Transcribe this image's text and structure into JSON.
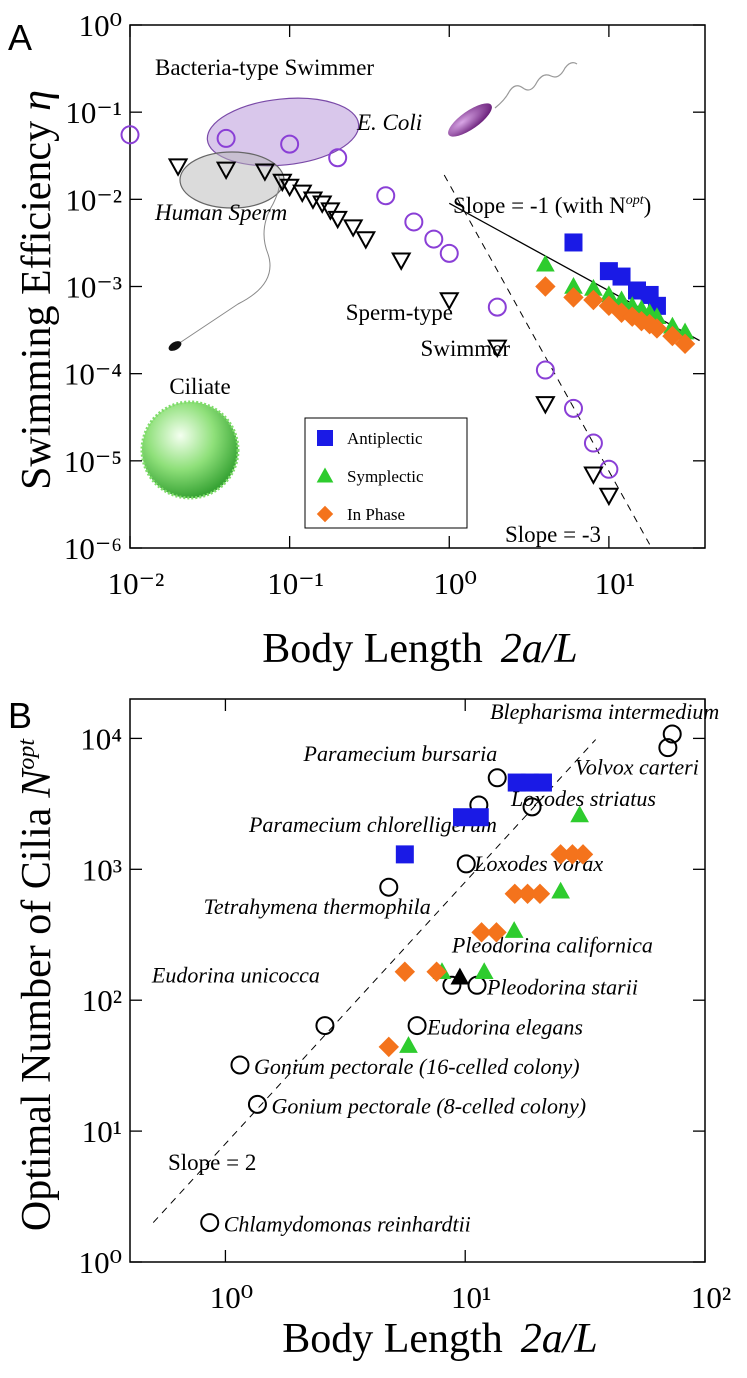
{
  "chart_data": [
    {
      "panel": "A",
      "type": "scatter",
      "log_x": true,
      "log_y": true,
      "xlabel": {
        "text": "Body Length",
        "math": "2a/L"
      },
      "ylabel": {
        "text": "Swimming Efficiency",
        "symbol": "η"
      },
      "xlim": [
        0.01,
        40
      ],
      "ylim": [
        1e-06,
        1
      ],
      "xticks": [
        {
          "value": 0.01,
          "label": "10⁻²"
        },
        {
          "value": 0.1,
          "label": "10⁻¹"
        },
        {
          "value": 1,
          "label": "10⁰"
        },
        {
          "value": 10,
          "label": "10¹"
        }
      ],
      "yticks": [
        {
          "value": 1e-06,
          "label": "10⁻⁶"
        },
        {
          "value": 1e-05,
          "label": "10⁻⁵"
        },
        {
          "value": 0.0001,
          "label": "10⁻⁴"
        },
        {
          "value": 0.001,
          "label": "10⁻³"
        },
        {
          "value": 0.01,
          "label": "10⁻²"
        },
        {
          "value": 0.1,
          "label": "10⁻¹"
        },
        {
          "value": 1,
          "label": "10⁰"
        }
      ],
      "series": [
        {
          "marker": "circle",
          "filled": false,
          "color": "#8a3fd6",
          "x": [
            0.01,
            0.04,
            0.1,
            0.2,
            0.4,
            0.6,
            0.8,
            1,
            2,
            4,
            6,
            8,
            10
          ],
          "values": [
            0.055,
            0.05,
            0.043,
            0.03,
            0.011,
            0.0055,
            0.0035,
            0.0024,
            0.00058,
            0.00011,
            4e-05,
            1.6e-05,
            8e-06
          ]
        },
        {
          "marker": "triangle-down",
          "filled": false,
          "color": "#000000",
          "x": [
            0.02,
            0.04,
            0.07,
            0.09,
            0.1,
            0.12,
            0.14,
            0.16,
            0.18,
            0.2,
            0.25,
            0.3,
            0.5,
            1,
            2,
            4,
            8,
            10
          ],
          "values": [
            0.024,
            0.022,
            0.021,
            0.016,
            0.014,
            0.012,
            0.01,
            0.009,
            0.0075,
            0.006,
            0.0048,
            0.0035,
            0.002,
            0.0007,
            0.0002,
            4.5e-05,
            7e-06,
            4e-06
          ]
        },
        {
          "name": "Antiplectic",
          "marker": "square",
          "filled": true,
          "color": "#1a1ae6",
          "x": [
            6,
            10,
            12,
            15,
            18,
            20
          ],
          "values": [
            0.0032,
            0.0015,
            0.0013,
            0.0009,
            0.0008,
            0.0006
          ]
        },
        {
          "name": "Symplectic",
          "marker": "triangle",
          "filled": true,
          "color": "#2ecc2e",
          "x": [
            4,
            6,
            8,
            10,
            12,
            14,
            16,
            18,
            20,
            25,
            30
          ],
          "values": [
            0.0018,
            0.001,
            0.00095,
            0.0008,
            0.0007,
            0.0006,
            0.00055,
            0.0005,
            0.00045,
            0.00035,
            0.0003
          ]
        },
        {
          "name": "In Phase",
          "marker": "diamond",
          "filled": true,
          "color": "#f4731c",
          "x": [
            4,
            6,
            8,
            10,
            12,
            14,
            16,
            18,
            20,
            25,
            30
          ],
          "values": [
            0.001,
            0.00075,
            0.0007,
            0.0006,
            0.0005,
            0.00045,
            0.0004,
            0.00037,
            0.00033,
            0.00027,
            0.00022
          ]
        }
      ],
      "lines": [
        {
          "style": "solid",
          "x": [
            1,
            37
          ],
          "values": [
            0.009,
            0.00024
          ]
        },
        {
          "style": "dashed",
          "x": [
            0.93,
            18
          ],
          "values": [
            0.019,
            1.1e-06
          ]
        }
      ],
      "annotations": {
        "bacteria": "Bacteria-type Swimmer",
        "ecoli": "E. Coli",
        "human_sperm": "Human Sperm",
        "slope1": {
          "text": "Slope = -1 (with N",
          "sup": "opt",
          "end": ")"
        },
        "sperm_type": "Sperm-type",
        "swimmer": "Swimmer",
        "ciliate": "Ciliate",
        "slope3": "Slope = -3"
      }
    },
    {
      "panel": "B",
      "type": "scatter",
      "log_x": true,
      "log_y": true,
      "xlabel": {
        "text": "Body Length",
        "math": "2a/L"
      },
      "ylabel": {
        "text": "Optimal Number of Cilia",
        "symbol": "N",
        "sup": "opt"
      },
      "xlim": [
        0.4,
        100
      ],
      "ylim": [
        1,
        20000
      ],
      "xticks": [
        {
          "value": 1,
          "label": "10⁰"
        },
        {
          "value": 10,
          "label": "10¹"
        },
        {
          "value": 100,
          "label": "10²"
        }
      ],
      "yticks": [
        {
          "value": 1,
          "label": "10⁰"
        },
        {
          "value": 10,
          "label": "10¹"
        },
        {
          "value": 100,
          "label": "10²"
        },
        {
          "value": 1000,
          "label": "10³"
        },
        {
          "value": 10000,
          "label": "10⁴"
        }
      ],
      "series": [
        {
          "marker": "circle",
          "filled": false,
          "color": "#000000",
          "x": [
            0.86,
            1.36,
            1.15,
            2.6,
            6.3,
            11.2,
            8.8,
            4.8,
            10.1,
            11.4,
            13.6,
            19,
            70,
            73
          ],
          "values": [
            2,
            16,
            32,
            64,
            64,
            130,
            130,
            730,
            1100,
            3100,
            5000,
            3000,
            8500,
            10800
          ],
          "point_labels": [
            "Chlamydomonas reinhardtii",
            "Gonium pectorale (8-celled colony)",
            "Gonium pectorale (16-celled colony)",
            "Eudorina unicocca",
            "Eudorina elegans",
            "Pleodorina starii",
            "Pleodorina californica",
            "Tetrahymena thermophila",
            "Loxodes vorax",
            "Paramecium chlorelligerum",
            "Paramecium bursaria",
            "Loxodes striatus",
            "Volvox carteri",
            "Blepharisma intermedium"
          ]
        },
        {
          "marker": "triangle",
          "filled": true,
          "color": "#000000",
          "x": [
            9.5
          ],
          "values": [
            150
          ]
        },
        {
          "marker": "square",
          "filled": true,
          "color": "#1a1ae6",
          "x": [
            5.6,
            9.7,
            11.5,
            16.4,
            18.6,
            21.1
          ],
          "values": [
            1300,
            2500,
            2500,
            4600,
            4600,
            4600
          ]
        },
        {
          "marker": "triangle",
          "filled": true,
          "color": "#2ecc2e",
          "x": [
            5.8,
            8,
            12,
            16,
            25,
            30
          ],
          "values": [
            45,
            165,
            165,
            340,
            680,
            2600
          ]
        },
        {
          "marker": "diamond",
          "filled": true,
          "color": "#f4731c",
          "x": [
            4.8,
            5.6,
            7.6,
            11.7,
            13.5,
            16.1,
            18.2,
            20.5,
            25,
            28,
            31
          ],
          "values": [
            44,
            165,
            165,
            330,
            330,
            650,
            650,
            650,
            1300,
            1300,
            1300
          ]
        }
      ],
      "lines": [
        {
          "style": "dashed",
          "x": [
            0.5,
            35
          ],
          "values": [
            2,
            9800
          ]
        }
      ],
      "annotations": {
        "slope2": "Slope = 2"
      }
    }
  ]
}
